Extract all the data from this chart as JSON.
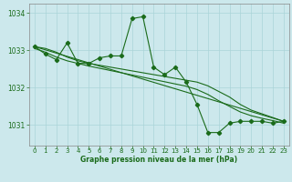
{
  "title": "Graphe pression niveau de la mer (hPa)",
  "bg_color": "#cce8ec",
  "line_color": "#1a6b1a",
  "grid_color": "#aad4d8",
  "xlim": [
    -0.5,
    23.5
  ],
  "ylim": [
    1030.45,
    1034.25
  ],
  "yticks": [
    1031,
    1032,
    1033,
    1034
  ],
  "xticks": [
    0,
    1,
    2,
    3,
    4,
    5,
    6,
    7,
    8,
    9,
    10,
    11,
    12,
    13,
    14,
    15,
    16,
    17,
    18,
    19,
    20,
    21,
    22,
    23
  ],
  "series": [
    {
      "x": [
        0,
        1,
        2,
        3,
        4,
        5,
        6,
        7,
        8,
        9,
        10,
        11,
        12,
        13,
        14,
        15,
        16,
        17,
        18,
        19,
        20,
        21,
        22,
        23
      ],
      "y": [
        1033.1,
        1032.9,
        1032.75,
        1033.2,
        1032.65,
        1032.65,
        1032.8,
        1032.85,
        1032.85,
        1033.85,
        1033.9,
        1032.55,
        1032.35,
        1032.55,
        1032.15,
        1031.55,
        1030.8,
        1030.8,
        1031.05,
        1031.1,
        1031.1,
        1031.1,
        1031.05,
        1031.1
      ],
      "has_markers": true
    },
    {
      "x": [
        0,
        23
      ],
      "y": [
        1033.1,
        1031.1
      ],
      "has_markers": false
    },
    {
      "x": [
        0,
        1,
        2,
        3,
        4,
        5,
        6,
        7,
        8,
        9,
        10,
        11,
        12,
        13,
        14,
        15,
        16,
        17,
        18,
        19,
        20,
        21,
        22,
        23
      ],
      "y": [
        1033.1,
        1033.05,
        1032.95,
        1032.82,
        1032.72,
        1032.65,
        1032.6,
        1032.55,
        1032.5,
        1032.45,
        1032.4,
        1032.35,
        1032.3,
        1032.25,
        1032.2,
        1032.15,
        1032.05,
        1031.9,
        1031.75,
        1031.55,
        1031.4,
        1031.3,
        1031.2,
        1031.1
      ],
      "has_markers": false
    },
    {
      "x": [
        0,
        1,
        2,
        3,
        4,
        5,
        6,
        7,
        8,
        9,
        10,
        11,
        12,
        13,
        14,
        15,
        16,
        17,
        18,
        19,
        20,
        21,
        22,
        23
      ],
      "y": [
        1033.05,
        1032.95,
        1032.82,
        1032.72,
        1032.65,
        1032.58,
        1032.52,
        1032.46,
        1032.4,
        1032.34,
        1032.28,
        1032.22,
        1032.16,
        1032.1,
        1032.04,
        1031.95,
        1031.82,
        1031.65,
        1031.5,
        1031.35,
        1031.25,
        1031.18,
        1031.12,
        1031.05
      ],
      "has_markers": false
    }
  ]
}
